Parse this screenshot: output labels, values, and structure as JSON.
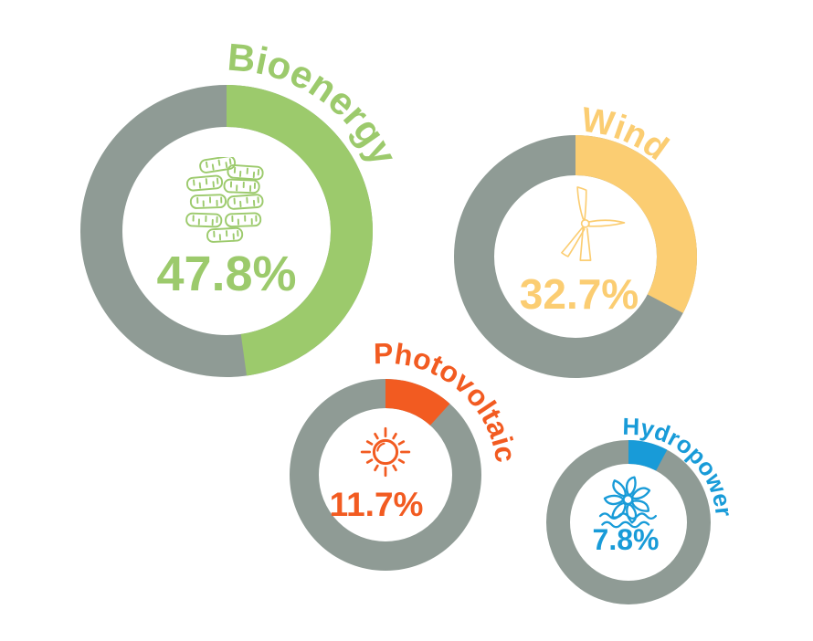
{
  "chart_data": {
    "type": "pie",
    "variant": "donut-multiples",
    "title": "",
    "unit": "%",
    "legend_position": "curved-labels-around-each-donut",
    "grid": false,
    "background": "#FFFFFF",
    "track_color": "#8F9B95",
    "categories": [
      "Bioenergy",
      "Wind",
      "Photovoltaic",
      "Hydropower"
    ],
    "values": [
      47.8,
      32.7,
      11.7,
      7.8
    ],
    "segments": [
      {
        "id": "bioenergy",
        "label": "Bioenergy",
        "value": 47.8,
        "display": "47.8%",
        "color": "#9CCA6C",
        "icon": "logs-icon"
      },
      {
        "id": "wind",
        "label": "Wind",
        "value": 32.7,
        "display": "32.7%",
        "color": "#FBCD72",
        "icon": "turbine-icon"
      },
      {
        "id": "photovoltaic",
        "label": "Photovoltaic",
        "value": 11.7,
        "display": "11.7%",
        "color": "#F25B21",
        "icon": "sun-icon"
      },
      {
        "id": "hydropower",
        "label": "Hydropower",
        "value": 7.8,
        "display": "7.8%",
        "color": "#189BD8",
        "icon": "waterwheel-icon"
      }
    ]
  }
}
